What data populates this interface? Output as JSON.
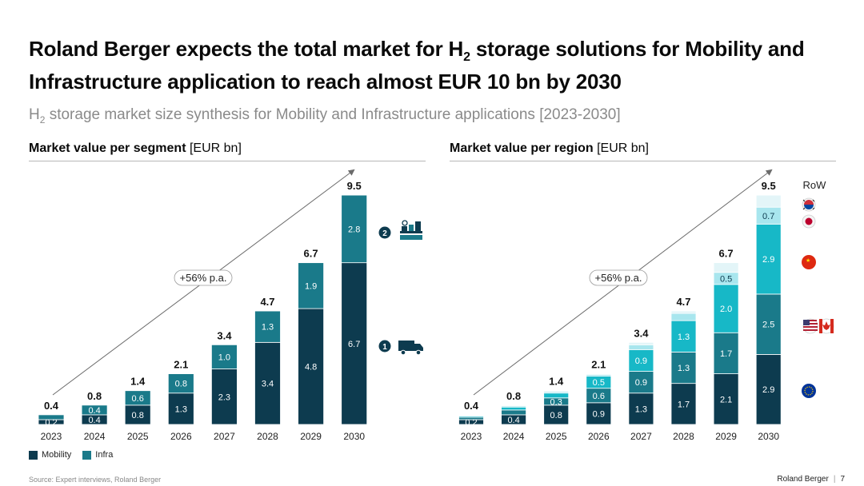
{
  "title_line1_a": "Roland Berger expects the total market for H",
  "title_sub": "2",
  "title_line1_b": " storage solutions for Mobility and",
  "title_line2": "Infrastructure application to reach almost EUR 10 bn by 2030",
  "subtitle_a": "H",
  "subtitle_sub": "2",
  "subtitle_b": " storage market size synthesis for Mobility and Infrastructure applications [2023-2030]",
  "left_panel": {
    "title_bold": "Market value per segment",
    "title_unit": " [EUR bn]"
  },
  "right_panel": {
    "title_bold": "Market value per region",
    "title_unit": " [EUR bn]"
  },
  "legend": {
    "mobility": "Mobility",
    "infra": "Infra"
  },
  "segment_markers": [
    "1",
    "2"
  ],
  "row_label": "RoW",
  "source": "Source: Expert interviews, Roland Berger",
  "footer": {
    "brand": "Roland Berger",
    "page": "7"
  },
  "colors": {
    "mobility": "#0d3b4f",
    "infra": "#1a7a8a",
    "region_eu": "#0d3b4f",
    "region_na": "#1a7a8a",
    "region_cn": "#17b8c7",
    "region_jp": "#a8e6ee",
    "region_kr": "#e3f5f8",
    "arrow": "#6b6b6b"
  },
  "icons": [
    "truck-icon",
    "station-icon",
    "korea-flag-icon",
    "japan-flag-icon",
    "china-flag-icon",
    "usa-flag-icon",
    "canada-flag-icon",
    "eu-flag-icon"
  ],
  "chart_data": [
    {
      "type": "bar",
      "title": "Market value per segment [EUR bn]",
      "stacked": true,
      "categories": [
        "2023",
        "2024",
        "2025",
        "2026",
        "2027",
        "2028",
        "2029",
        "2030"
      ],
      "totals": [
        "0.4",
        "0.8",
        "1.4",
        "2.1",
        "3.4",
        "4.7",
        "6.7",
        "9.5"
      ],
      "growth_annotation": "+56% p.a.",
      "series": [
        {
          "name": "Mobility",
          "values": [
            0.2,
            0.4,
            0.8,
            1.3,
            2.3,
            3.4,
            4.8,
            6.7
          ],
          "labels": [
            "0.2",
            "0.4",
            "0.8",
            "1.3",
            "2.3",
            "3.4",
            "4.8",
            "6.7"
          ]
        },
        {
          "name": "Infra",
          "values": [
            0.2,
            0.4,
            0.6,
            0.8,
            1.0,
            1.3,
            1.9,
            2.8
          ],
          "labels": [
            "",
            "0.4",
            "0.6",
            "0.8",
            "1.0",
            "1.3",
            "1.9",
            "2.8"
          ]
        }
      ]
    },
    {
      "type": "bar",
      "title": "Market value per region [EUR bn]",
      "stacked": true,
      "categories": [
        "2023",
        "2024",
        "2025",
        "2026",
        "2027",
        "2028",
        "2029",
        "2030"
      ],
      "totals": [
        "0.4",
        "0.8",
        "1.4",
        "2.1",
        "3.4",
        "4.7",
        "6.7",
        "9.5"
      ],
      "growth_annotation": "+56% p.a.",
      "series": [
        {
          "key": "region_eu",
          "values": [
            0.2,
            0.4,
            0.8,
            0.9,
            1.3,
            1.7,
            2.1,
            2.9
          ],
          "labels": [
            "0.2",
            "0.4",
            "0.8",
            "0.9",
            "1.3",
            "1.7",
            "2.1",
            "2.9"
          ]
        },
        {
          "key": "region_na",
          "values": [
            0.1,
            0.2,
            0.3,
            0.6,
            0.9,
            1.3,
            1.7,
            2.5
          ],
          "labels": [
            "",
            "",
            "0.3",
            "0.6",
            "0.9",
            "1.3",
            "1.7",
            "2.5"
          ]
        },
        {
          "key": "region_cn",
          "values": [
            0.05,
            0.12,
            0.2,
            0.5,
            0.9,
            1.3,
            2.0,
            2.9
          ],
          "labels": [
            "",
            "",
            "",
            "0.5",
            "0.9",
            "1.3",
            "2.0",
            "2.9"
          ]
        },
        {
          "key": "region_jp",
          "values": [
            0.03,
            0.05,
            0.06,
            0.07,
            0.2,
            0.3,
            0.5,
            0.7
          ],
          "labels": [
            "",
            "",
            "",
            "",
            "",
            "",
            "0.5",
            "0.7"
          ]
        },
        {
          "key": "region_kr",
          "values": [
            0.02,
            0.03,
            0.04,
            0.03,
            0.1,
            0.1,
            0.4,
            0.5
          ],
          "labels": [
            "",
            "",
            "",
            "",
            "",
            "",
            "",
            ""
          ]
        }
      ]
    }
  ]
}
